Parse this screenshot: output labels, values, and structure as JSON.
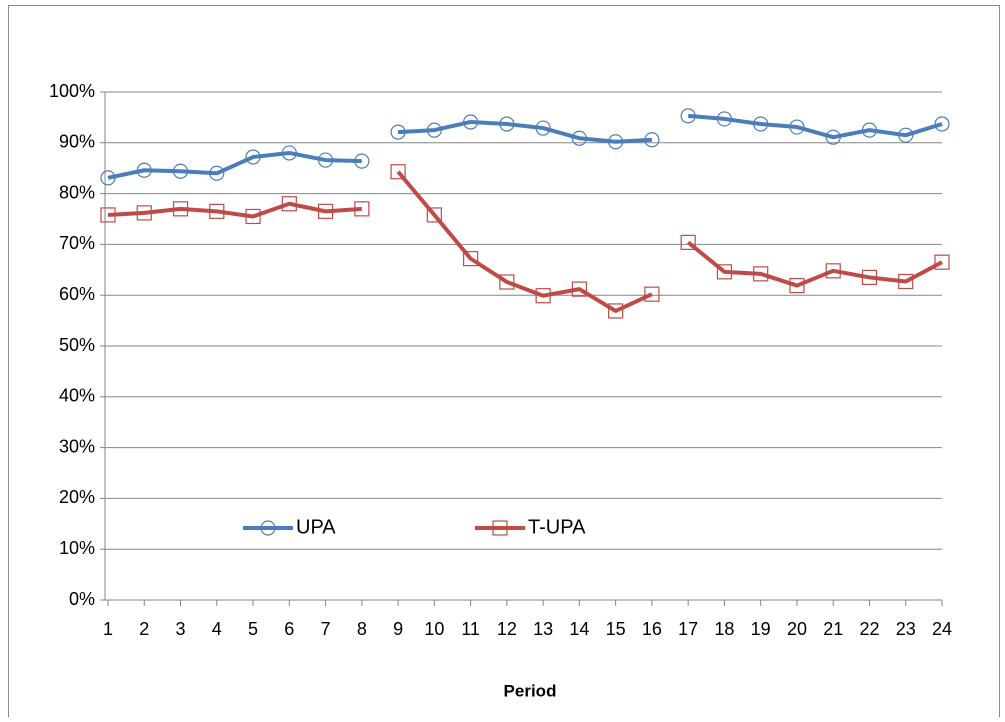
{
  "chart_data": {
    "type": "line",
    "x_label": "Period",
    "categories": [
      1,
      2,
      3,
      4,
      5,
      6,
      7,
      8,
      9,
      10,
      11,
      12,
      13,
      14,
      15,
      16,
      17,
      18,
      19,
      20,
      21,
      22,
      23,
      24
    ],
    "breaks_after": [
      8,
      16
    ],
    "series": [
      {
        "name": "UPA",
        "color": "#4a7ebb",
        "marker": "circle",
        "values": [
          83.1,
          84.6,
          84.4,
          84.0,
          87.2,
          88.0,
          86.6,
          86.4,
          92.1,
          92.5,
          94.1,
          93.7,
          92.9,
          90.9,
          90.2,
          90.6,
          95.3,
          94.7,
          93.7,
          93.1,
          91.1,
          92.5,
          91.5,
          93.7
        ]
      },
      {
        "name": "T-UPA",
        "color": "#be4b48",
        "marker": "square",
        "values": [
          75.8,
          76.2,
          77.0,
          76.5,
          75.5,
          78.0,
          76.5,
          77.0,
          84.3,
          75.8,
          67.2,
          62.6,
          59.9,
          61.2,
          56.9,
          60.2,
          70.4,
          64.6,
          64.2,
          61.9,
          64.8,
          63.5,
          62.7,
          66.5
        ]
      }
    ],
    "ylim": [
      0,
      100
    ],
    "yticks": [
      {
        "value": 0,
        "label": "0%"
      },
      {
        "value": 10,
        "label": "10%"
      },
      {
        "value": 20,
        "label": "20%"
      },
      {
        "value": 30,
        "label": "30%"
      },
      {
        "value": 40,
        "label": "40%"
      },
      {
        "value": 50,
        "label": "50%"
      },
      {
        "value": 60,
        "label": "60%"
      },
      {
        "value": 70,
        "label": "70%"
      },
      {
        "value": 80,
        "label": "80%"
      },
      {
        "value": 90,
        "label": "90%"
      },
      {
        "value": 100,
        "label": "100%"
      }
    ],
    "grid": true,
    "legend": "inside-bottom-left"
  }
}
